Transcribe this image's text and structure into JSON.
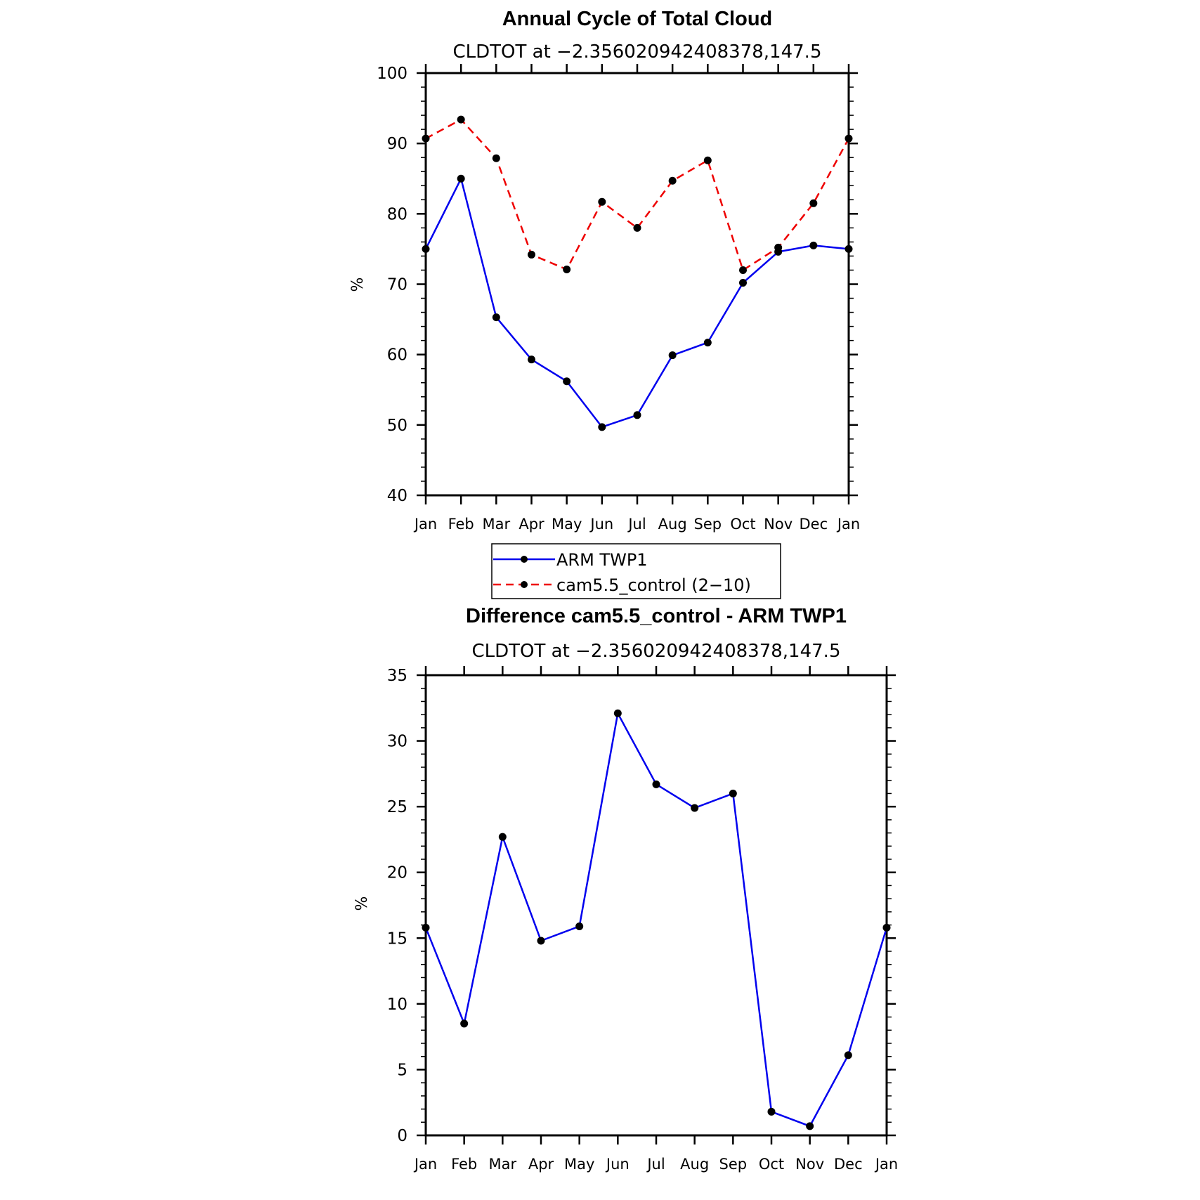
{
  "chart_data": [
    {
      "type": "line",
      "title": "Annual Cycle of Total Cloud",
      "subtitle": "CLDTOT at −2.356020942408378,147.5",
      "ylabel": "%",
      "xlabel": "",
      "categories": [
        "Jan",
        "Feb",
        "Mar",
        "Apr",
        "May",
        "Jun",
        "Jul",
        "Aug",
        "Sep",
        "Oct",
        "Nov",
        "Dec",
        "Jan"
      ],
      "ylim": [
        40,
        100
      ],
      "yticks": [
        40,
        50,
        60,
        70,
        80,
        90,
        100
      ],
      "ytick_labels": [
        "40",
        "50",
        "60",
        "70",
        "80",
        "90",
        "100"
      ],
      "series": [
        {
          "name": "ARM TWP1",
          "color": "#0000ee",
          "dash": "solid",
          "values": [
            75.0,
            85.0,
            65.3,
            59.3,
            56.2,
            49.7,
            51.4,
            59.9,
            61.7,
            70.2,
            74.6,
            75.5,
            75.0
          ]
        },
        {
          "name": "cam5.5_control (2−10)",
          "color": "#ee0000",
          "dash": "dashed",
          "values": [
            90.7,
            93.4,
            87.9,
            74.2,
            72.1,
            81.7,
            78.0,
            84.7,
            87.6,
            72.0,
            75.2,
            81.5,
            90.7
          ]
        }
      ],
      "legend": {
        "placement": "below",
        "entries": [
          "ARM TWP1",
          "cam5.5_control (2−10)"
        ]
      }
    },
    {
      "type": "line",
      "title": "Difference cam5.5_control - ARM TWP1",
      "subtitle": "CLDTOT at −2.356020942408378,147.5",
      "ylabel": "%",
      "xlabel": "",
      "categories": [
        "Jan",
        "Feb",
        "Mar",
        "Apr",
        "May",
        "Jun",
        "Jul",
        "Aug",
        "Sep",
        "Oct",
        "Nov",
        "Dec",
        "Jan"
      ],
      "ylim": [
        0,
        35
      ],
      "yticks": [
        0,
        5,
        10,
        15,
        20,
        25,
        30,
        35
      ],
      "ytick_labels": [
        "0",
        "5",
        "10",
        "15",
        "20",
        "25",
        "30",
        "35"
      ],
      "series": [
        {
          "name": "Difference",
          "color": "#0000ee",
          "dash": "solid",
          "values": [
            15.8,
            8.5,
            22.7,
            14.8,
            15.9,
            32.1,
            26.7,
            24.9,
            26.0,
            1.8,
            0.7,
            6.1,
            15.8
          ]
        }
      ]
    }
  ]
}
